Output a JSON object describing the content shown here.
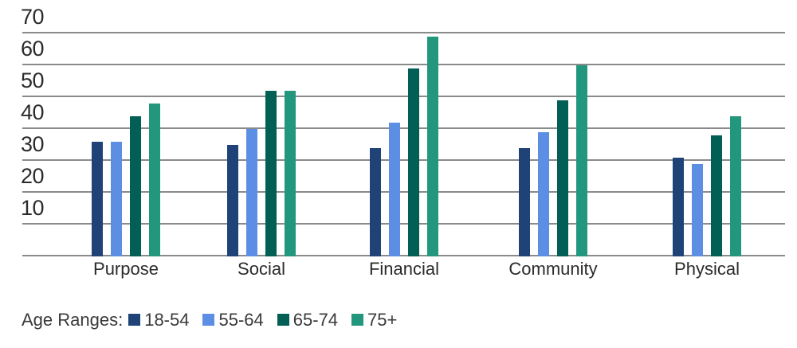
{
  "chart_data": {
    "type": "bar",
    "title": "",
    "xlabel": "",
    "ylabel": "",
    "categories": [
      "Purpose",
      "Social",
      "Financial",
      "Community",
      "Physical"
    ],
    "series": [
      {
        "name": "18-54",
        "color": "#1F4377",
        "values": [
          36,
          35,
          34,
          34,
          31
        ]
      },
      {
        "name": "55-64",
        "color": "#5C8FE4",
        "values": [
          36,
          40,
          42,
          39,
          29
        ]
      },
      {
        "name": "65-74",
        "color": "#015F55",
        "values": [
          44,
          52,
          59,
          49,
          38
        ]
      },
      {
        "name": "75+",
        "color": "#23977E",
        "values": [
          48,
          52,
          69,
          60,
          44
        ]
      }
    ],
    "ylim": [
      0,
      70
    ],
    "yticks": [
      70,
      60,
      50,
      40,
      30,
      20,
      10
    ],
    "grid": true,
    "legend_position": "bottom-left",
    "legend_title": "Age Ranges:"
  },
  "colors": {
    "background": "#FFFFFF",
    "gridline": "#8A8A8A",
    "axis_text": "#2B2B2B",
    "legend_text": "#3A3A3A"
  }
}
